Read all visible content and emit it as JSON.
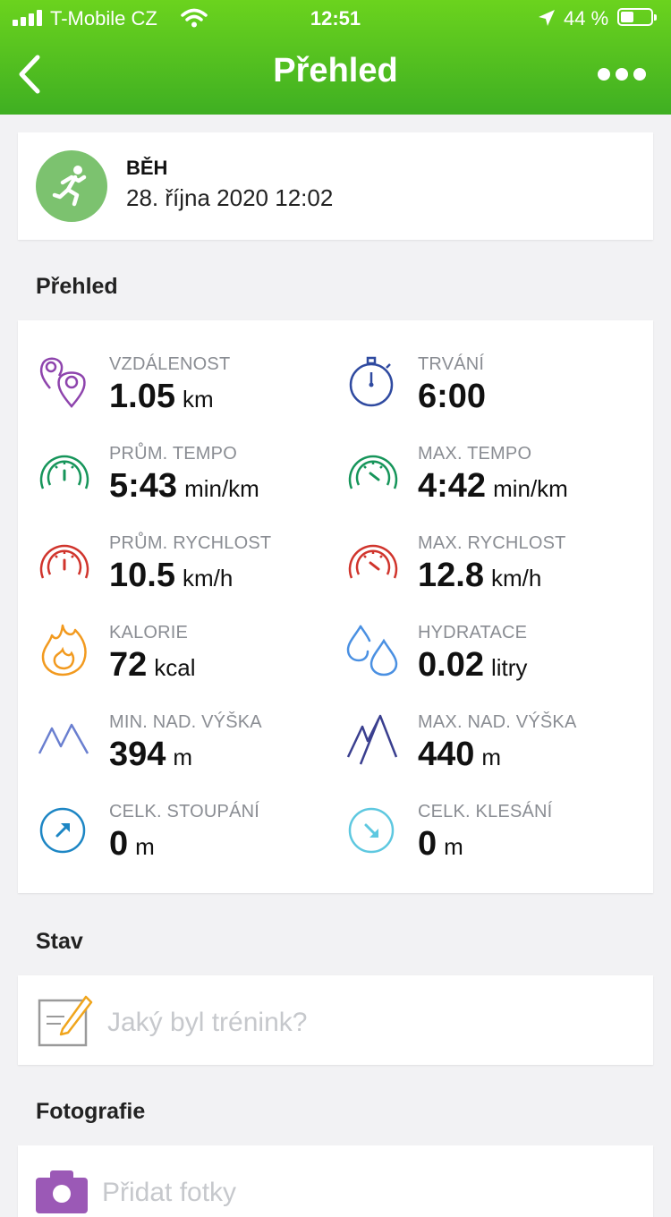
{
  "status_bar": {
    "carrier": "T-Mobile CZ",
    "time": "12:51",
    "battery_percent_label": "44 %",
    "battery_level": 0.44
  },
  "nav": {
    "title": "Přehled",
    "back_icon": "chevron-left-icon",
    "more_icon": "more-dots-icon"
  },
  "activity": {
    "type": "BĚH",
    "datetime": "28. října 2020 12:02",
    "icon": "running-icon",
    "icon_bg": "#7cc26f"
  },
  "overview": {
    "section_title": "Přehled",
    "stats": [
      {
        "label": "VZDÁLENOST",
        "value": "1.05",
        "unit": "km",
        "icon": "location-pins-icon",
        "color": "#8e44ad"
      },
      {
        "label": "TRVÁNÍ",
        "value": "6:00",
        "unit": "",
        "icon": "stopwatch-icon",
        "color": "#2f4aa0"
      },
      {
        "label": "PRŮM. TEMPO",
        "value": "5:43",
        "unit": "min/km",
        "icon": "speedometer-icon",
        "color": "#16955a"
      },
      {
        "label": "MAX. TEMPO",
        "value": "4:42",
        "unit": "min/km",
        "icon": "speedometer-max-icon",
        "color": "#16955a"
      },
      {
        "label": "PRŮM. RYCHLOST",
        "value": "10.5",
        "unit": "km/h",
        "icon": "speedometer-icon",
        "color": "#d0342c"
      },
      {
        "label": "MAX. RYCHLOST",
        "value": "12.8",
        "unit": "km/h",
        "icon": "speedometer-max-icon",
        "color": "#d0342c"
      },
      {
        "label": "KALORIE",
        "value": "72",
        "unit": "kcal",
        "icon": "flame-icon",
        "color": "#f29a1f"
      },
      {
        "label": "HYDRATACE",
        "value": "0.02",
        "unit": "litry",
        "icon": "water-drops-icon",
        "color": "#4a90e2"
      },
      {
        "label": "MIN. NAD. VÝŠKA",
        "value": "394",
        "unit": "m",
        "icon": "mountain-low-icon",
        "color": "#6a7fd0"
      },
      {
        "label": "MAX. NAD. VÝŠKA",
        "value": "440",
        "unit": "m",
        "icon": "mountain-high-icon",
        "color": "#3a3f8f"
      },
      {
        "label": "CELK. STOUPÁNÍ",
        "value": "0",
        "unit": "m",
        "icon": "ascent-arrow-icon",
        "color": "#1d86c4"
      },
      {
        "label": "CELK. KLESÁNÍ",
        "value": "0",
        "unit": "m",
        "icon": "descent-arrow-icon",
        "color": "#5ec8e0"
      }
    ]
  },
  "status_section": {
    "title": "Stav",
    "placeholder": "Jaký byl trénink?",
    "icon": "note-pencil-icon"
  },
  "photos_section": {
    "title": "Fotografie",
    "add_label": "Přidat fotky",
    "icon": "camera-icon"
  }
}
